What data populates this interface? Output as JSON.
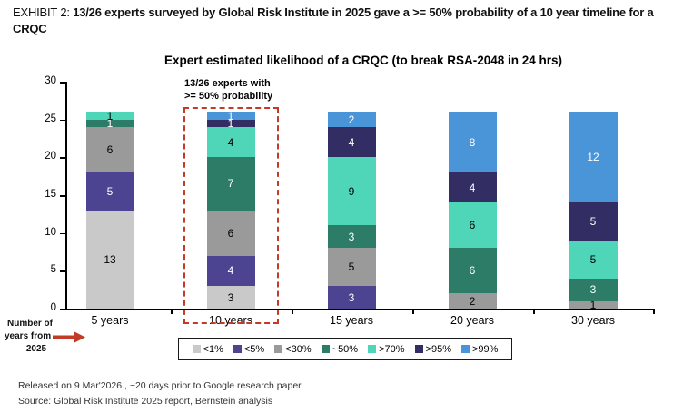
{
  "header": {
    "prefix": "EXHIBIT 2: ",
    "headline": "13/26 experts surveyed by Global Risk Institute in 2025 gave a >= 50% probability of a 10 year timeline for a CRQC"
  },
  "chart": {
    "title": "Expert estimated likelihood of a CRQC (to break RSA-2048 in 24 hrs)",
    "annotation_line1": "13/26 experts with",
    "annotation_line2": ">= 50% probability",
    "axis_note_line1": "Number of",
    "axis_note_line2": "years from",
    "axis_note_line3": "2025",
    "arrow_color": "#c13b27"
  },
  "chart_data": {
    "type": "bar",
    "stacked": true,
    "title": "Expert estimated likelihood of a CRQC (to break RSA-2048 in 24 hrs)",
    "categories": [
      "5 years",
      "10 years",
      "15 years",
      "20 years",
      "30 years"
    ],
    "series": [
      {
        "name": "<1%",
        "color": "#c9c9c9",
        "text_color": "#000000",
        "values": [
          13,
          3,
          0,
          0,
          0
        ]
      },
      {
        "name": "<5%",
        "color": "#4c4391",
        "text_color": "#ffffff",
        "values": [
          5,
          4,
          3,
          0,
          0
        ]
      },
      {
        "name": "<30%",
        "color": "#9a9a9a",
        "text_color": "#000000",
        "values": [
          6,
          6,
          5,
          2,
          1
        ]
      },
      {
        "name": "~50%",
        "color": "#2d7c68",
        "text_color": "#ffffff",
        "values": [
          1,
          7,
          3,
          6,
          3
        ]
      },
      {
        "name": ">70%",
        "color": "#4fd6b8",
        "text_color": "#000000",
        "values": [
          1,
          4,
          9,
          6,
          5
        ]
      },
      {
        "name": ">95%",
        "color": "#322d62",
        "text_color": "#ffffff",
        "values": [
          0,
          1,
          4,
          4,
          5
        ]
      },
      {
        "name": ">99%",
        "color": "#4a94d8",
        "text_color": "#ffffff",
        "values": [
          0,
          1,
          2,
          8,
          12
        ]
      }
    ],
    "ylim": [
      0,
      30
    ],
    "yticks": [
      0,
      5,
      10,
      15,
      20,
      25,
      30
    ],
    "grid": false,
    "legend_position": "bottom",
    "highlight": {
      "category_index": 1,
      "box_color": "#c13b27",
      "note": "13/26 experts with >= 50% probability"
    }
  },
  "footer": {
    "line1": "Released on 9 Mar'2026., ~20 days prior to Google research paper",
    "line2": "Source: Global Risk Institute 2025 report, Bernstein analysis"
  }
}
